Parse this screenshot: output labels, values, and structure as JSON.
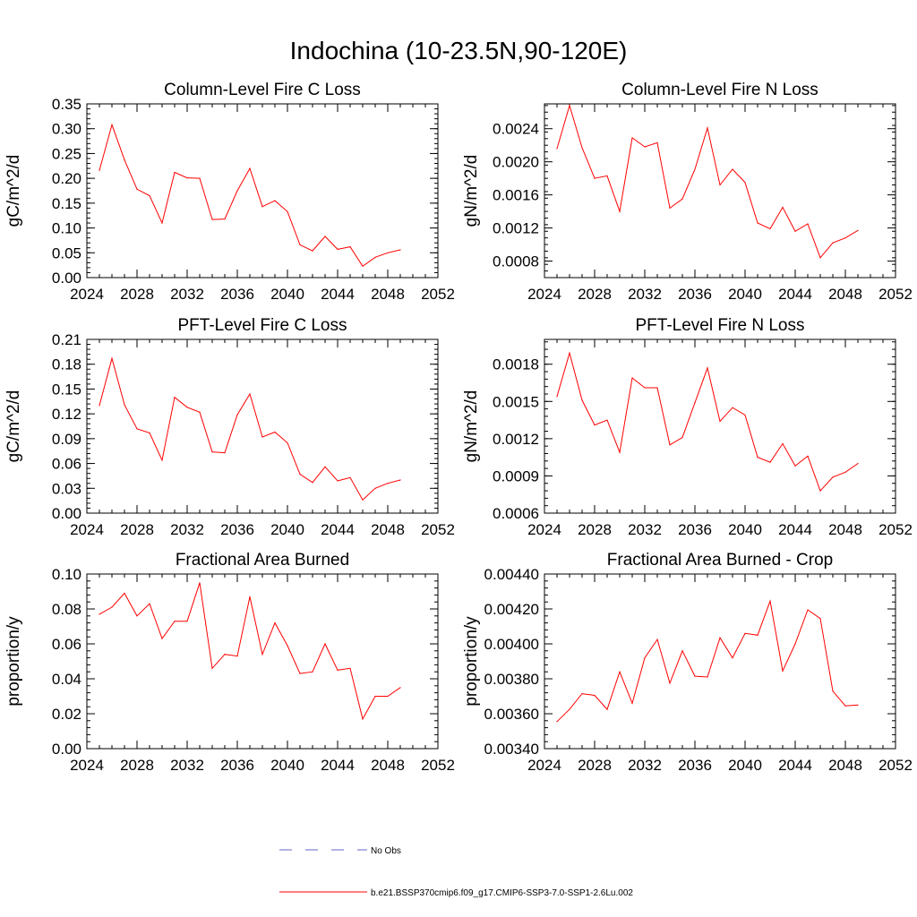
{
  "title": "Indochina (10-23.5N,90-120E)",
  "x_ticks": [
    "2024",
    "2028",
    "2032",
    "2036",
    "2040",
    "2044",
    "2048",
    "2052"
  ],
  "legend": {
    "obs_label": "No Obs",
    "model_label": "b.e21.BSSP370cmip6.f09_g17.CMIP6-SSP3-7.0-SSP1-2.6Lu.002",
    "obs_color": "#6666cc",
    "model_color": "#ff0000"
  },
  "chart_data": [
    {
      "type": "line",
      "title": "Column-Level Fire C Loss",
      "ylabel": "gC/m^2/d",
      "xlim": [
        2024,
        2052
      ],
      "ylim": [
        0,
        0.35
      ],
      "y_ticks": [
        "0.00",
        "0.05",
        "0.10",
        "0.15",
        "0.20",
        "0.25",
        "0.30",
        "0.35"
      ],
      "x": [
        2025,
        2026,
        2027,
        2028,
        2029,
        2030,
        2031,
        2032,
        2033,
        2034,
        2035,
        2036,
        2037,
        2038,
        2039,
        2040,
        2041,
        2042,
        2043,
        2044,
        2045,
        2046,
        2047,
        2048,
        2049
      ],
      "series": [
        {
          "values": [
            0.216,
            0.308,
            0.237,
            0.178,
            0.165,
            0.11,
            0.212,
            0.201,
            0.2,
            0.117,
            0.118,
            0.175,
            0.22,
            0.143,
            0.155,
            0.133,
            0.066,
            0.054,
            0.083,
            0.057,
            0.062,
            0.023,
            0.041,
            0.05,
            0.056
          ],
          "color": "#ff0000"
        }
      ]
    },
    {
      "type": "line",
      "title": "Column-Level Fire N Loss",
      "ylabel": "gN/m^2/d",
      "xlim": [
        2024,
        2052
      ],
      "ylim": [
        0.0006,
        0.0027
      ],
      "y_ticks": [
        "0.0008",
        "0.0012",
        "0.0016",
        "0.0020",
        "0.0024"
      ],
      "x": [
        2025,
        2026,
        2027,
        2028,
        2029,
        2030,
        2031,
        2032,
        2033,
        2034,
        2035,
        2036,
        2037,
        2038,
        2039,
        2040,
        2041,
        2042,
        2043,
        2044,
        2045,
        2046,
        2047,
        2048,
        2049
      ],
      "series": [
        {
          "values": [
            0.00216,
            0.00268,
            0.00217,
            0.0018,
            0.00183,
            0.0014,
            0.00229,
            0.00218,
            0.00223,
            0.00144,
            0.00155,
            0.00191,
            0.00241,
            0.00172,
            0.00191,
            0.00175,
            0.00126,
            0.00119,
            0.00145,
            0.00116,
            0.00125,
            0.00084,
            0.00102,
            0.00108,
            0.00117
          ],
          "color": "#ff0000"
        }
      ]
    },
    {
      "type": "line",
      "title": "PFT-Level Fire C Loss",
      "ylabel": "gC/m^2/d",
      "xlim": [
        2024,
        2052
      ],
      "ylim": [
        0,
        0.21
      ],
      "y_ticks": [
        "0.00",
        "0.03",
        "0.06",
        "0.09",
        "0.12",
        "0.15",
        "0.18",
        "0.21"
      ],
      "x": [
        2025,
        2026,
        2027,
        2028,
        2029,
        2030,
        2031,
        2032,
        2033,
        2034,
        2035,
        2036,
        2037,
        2038,
        2039,
        2040,
        2041,
        2042,
        2043,
        2044,
        2045,
        2046,
        2047,
        2048,
        2049
      ],
      "series": [
        {
          "values": [
            0.13,
            0.187,
            0.131,
            0.102,
            0.097,
            0.064,
            0.14,
            0.128,
            0.122,
            0.074,
            0.073,
            0.119,
            0.144,
            0.092,
            0.098,
            0.085,
            0.047,
            0.037,
            0.056,
            0.039,
            0.043,
            0.016,
            0.03,
            0.036,
            0.04
          ],
          "color": "#ff0000"
        }
      ]
    },
    {
      "type": "line",
      "title": "PFT-Level Fire N Loss",
      "ylabel": "gN/m^2/d",
      "xlim": [
        2024,
        2052
      ],
      "ylim": [
        0.0006,
        0.002
      ],
      "y_ticks": [
        "0.0006",
        "0.0009",
        "0.0012",
        "0.0015",
        "0.0018"
      ],
      "x": [
        2025,
        2026,
        2027,
        2028,
        2029,
        2030,
        2031,
        2032,
        2033,
        2034,
        2035,
        2036,
        2037,
        2038,
        2039,
        2040,
        2041,
        2042,
        2043,
        2044,
        2045,
        2046,
        2047,
        2048,
        2049
      ],
      "series": [
        {
          "values": [
            0.00154,
            0.00189,
            0.00151,
            0.00131,
            0.00135,
            0.00109,
            0.00169,
            0.00161,
            0.00161,
            0.00115,
            0.00121,
            0.00149,
            0.00177,
            0.00134,
            0.00145,
            0.00139,
            0.00105,
            0.00101,
            0.00116,
            0.00098,
            0.00106,
            0.00078,
            0.00089,
            0.00093,
            0.001
          ],
          "color": "#ff0000"
        }
      ]
    },
    {
      "type": "line",
      "title": "Fractional Area Burned",
      "ylabel": "proportion/y",
      "xlim": [
        2024,
        2052
      ],
      "ylim": [
        0,
        0.1
      ],
      "y_ticks": [
        "0.00",
        "0.02",
        "0.04",
        "0.06",
        "0.08",
        "0.10"
      ],
      "x": [
        2025,
        2026,
        2027,
        2028,
        2029,
        2030,
        2031,
        2032,
        2033,
        2034,
        2035,
        2036,
        2037,
        2038,
        2039,
        2040,
        2041,
        2042,
        2043,
        2044,
        2045,
        2046,
        2047,
        2048,
        2049
      ],
      "series": [
        {
          "values": [
            0.077,
            0.081,
            0.089,
            0.076,
            0.083,
            0.063,
            0.073,
            0.073,
            0.095,
            0.046,
            0.054,
            0.053,
            0.087,
            0.054,
            0.072,
            0.059,
            0.043,
            0.044,
            0.06,
            0.045,
            0.046,
            0.017,
            0.03,
            0.03,
            0.035
          ],
          "color": "#ff0000"
        }
      ]
    },
    {
      "type": "line",
      "title": "Fractional Area Burned - Crop",
      "ylabel": "proportion/y",
      "xlim": [
        2024,
        2052
      ],
      "ylim": [
        0.0034,
        0.0044
      ],
      "y_ticks": [
        "0.00340",
        "0.00360",
        "0.00380",
        "0.00400",
        "0.00420",
        "0.00440"
      ],
      "x": [
        2025,
        2026,
        2027,
        2028,
        2029,
        2030,
        2031,
        2032,
        2033,
        2034,
        2035,
        2036,
        2037,
        2038,
        2039,
        2040,
        2041,
        2042,
        2043,
        2044,
        2045,
        2046,
        2047,
        2048,
        2049
      ],
      "series": [
        {
          "values": [
            0.003555,
            0.003625,
            0.003715,
            0.003705,
            0.003625,
            0.00384,
            0.00366,
            0.00392,
            0.004025,
            0.003775,
            0.00396,
            0.003815,
            0.00381,
            0.004035,
            0.00392,
            0.00406,
            0.00405,
            0.004245,
            0.003845,
            0.004,
            0.004195,
            0.004145,
            0.00373,
            0.003645,
            0.00365
          ],
          "color": "#ff0000"
        }
      ]
    }
  ]
}
